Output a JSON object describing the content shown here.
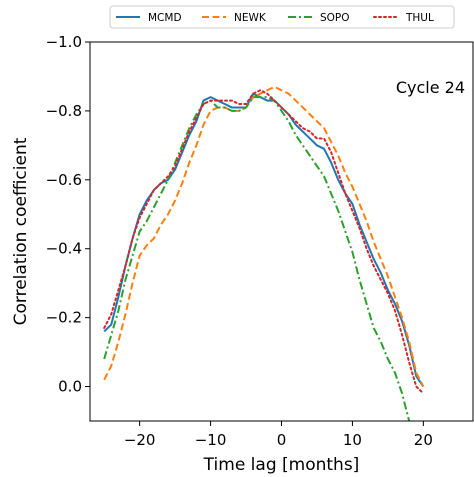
{
  "chart_data": {
    "type": "line",
    "title": "",
    "xlabel": "Time lag [months]",
    "ylabel": "Correlation coefficient",
    "annotation": "Cycle 24",
    "xlim": [
      -27,
      27
    ],
    "ylim": [
      0.1,
      -1.0
    ],
    "y_inverted": true,
    "x_ticks": [
      -20,
      -10,
      0,
      10,
      20
    ],
    "x_tick_labels": [
      "−20",
      "−10",
      "0",
      "10",
      "20"
    ],
    "y_ticks": [
      -1.0,
      -0.8,
      -0.6,
      -0.4,
      -0.2,
      0.0
    ],
    "y_tick_labels": [
      "−1.0",
      "−0.8",
      "−0.6",
      "−0.4",
      "−0.2",
      "0.0"
    ],
    "grid": false,
    "legend": {
      "placement": "top-center",
      "columns": 4
    },
    "series": [
      {
        "name": "MCMD",
        "color": "#1f77b4",
        "dash": "solid",
        "x": [
          -25,
          -24,
          -23,
          -22,
          -21,
          -20,
          -19,
          -18,
          -17,
          -16,
          -15,
          -14,
          -13,
          -12,
          -11,
          -10,
          -9,
          -8,
          -7,
          -6,
          -5,
          -4,
          -3,
          -2,
          -1,
          0,
          1,
          2,
          3,
          4,
          5,
          6,
          7,
          8,
          9,
          10,
          11,
          12,
          13,
          14,
          15,
          16,
          17,
          18,
          19,
          20
        ],
        "y": [
          -0.16,
          -0.18,
          -0.26,
          -0.35,
          -0.43,
          -0.5,
          -0.54,
          -0.57,
          -0.59,
          -0.6,
          -0.63,
          -0.68,
          -0.73,
          -0.77,
          -0.83,
          -0.84,
          -0.83,
          -0.82,
          -0.81,
          -0.81,
          -0.81,
          -0.85,
          -0.84,
          -0.83,
          -0.83,
          -0.81,
          -0.79,
          -0.76,
          -0.74,
          -0.72,
          -0.7,
          -0.69,
          -0.65,
          -0.6,
          -0.56,
          -0.53,
          -0.47,
          -0.42,
          -0.37,
          -0.33,
          -0.28,
          -0.24,
          -0.19,
          -0.12,
          -0.03,
          0.0
        ]
      },
      {
        "name": "NEWK",
        "color": "#ff7f0e",
        "dash": "dashed",
        "x": [
          -25,
          -24,
          -23,
          -22,
          -21,
          -20,
          -19,
          -18,
          -17,
          -16,
          -15,
          -14,
          -13,
          -12,
          -11,
          -10,
          -9,
          -8,
          -7,
          -6,
          -5,
          -4,
          -3,
          -2,
          -1,
          0,
          1,
          2,
          3,
          4,
          5,
          6,
          7,
          8,
          9,
          10,
          11,
          12,
          13,
          14,
          15,
          16,
          17,
          18,
          19,
          20
        ],
        "y": [
          -0.02,
          -0.06,
          -0.13,
          -0.21,
          -0.3,
          -0.38,
          -0.41,
          -0.43,
          -0.47,
          -0.5,
          -0.54,
          -0.59,
          -0.65,
          -0.7,
          -0.76,
          -0.8,
          -0.81,
          -0.81,
          -0.8,
          -0.8,
          -0.81,
          -0.84,
          -0.85,
          -0.86,
          -0.87,
          -0.86,
          -0.85,
          -0.83,
          -0.81,
          -0.79,
          -0.77,
          -0.75,
          -0.71,
          -0.67,
          -0.62,
          -0.58,
          -0.53,
          -0.48,
          -0.42,
          -0.37,
          -0.32,
          -0.26,
          -0.2,
          -0.13,
          -0.04,
          0.0
        ]
      },
      {
        "name": "SOPO",
        "color": "#2ca02c",
        "dash": "dashdot",
        "x": [
          -25,
          -24,
          -23,
          -22,
          -21,
          -20,
          -19,
          -18,
          -17,
          -16,
          -15,
          -14,
          -13,
          -12,
          -11,
          -10,
          -9,
          -8,
          -7,
          -6,
          -5,
          -4,
          -3,
          -2,
          -1,
          0,
          1,
          2,
          3,
          4,
          5,
          6,
          7,
          8,
          9,
          10,
          11,
          12,
          13,
          14,
          15,
          16,
          17,
          18
        ],
        "y": [
          -0.08,
          -0.15,
          -0.22,
          -0.31,
          -0.38,
          -0.45,
          -0.48,
          -0.52,
          -0.56,
          -0.6,
          -0.65,
          -0.7,
          -0.75,
          -0.79,
          -0.82,
          -0.83,
          -0.81,
          -0.81,
          -0.8,
          -0.8,
          -0.81,
          -0.84,
          -0.84,
          -0.84,
          -0.83,
          -0.8,
          -0.77,
          -0.73,
          -0.7,
          -0.67,
          -0.64,
          -0.61,
          -0.56,
          -0.51,
          -0.45,
          -0.39,
          -0.31,
          -0.24,
          -0.17,
          -0.13,
          -0.08,
          -0.04,
          0.02,
          0.1
        ]
      },
      {
        "name": "THUL",
        "color": "#d62728",
        "dash": "dotted",
        "x": [
          -25,
          -24,
          -23,
          -22,
          -21,
          -20,
          -19,
          -18,
          -17,
          -16,
          -15,
          -14,
          -13,
          -12,
          -11,
          -10,
          -9,
          -8,
          -7,
          -6,
          -5,
          -4,
          -3,
          -2,
          -1,
          0,
          1,
          2,
          3,
          4,
          5,
          6,
          7,
          8,
          9,
          10,
          11,
          12,
          13,
          14,
          15,
          16,
          17,
          18,
          19,
          20
        ],
        "y": [
          -0.17,
          -0.21,
          -0.28,
          -0.35,
          -0.43,
          -0.49,
          -0.53,
          -0.57,
          -0.59,
          -0.61,
          -0.64,
          -0.69,
          -0.74,
          -0.78,
          -0.82,
          -0.83,
          -0.83,
          -0.83,
          -0.83,
          -0.82,
          -0.82,
          -0.85,
          -0.86,
          -0.85,
          -0.83,
          -0.81,
          -0.79,
          -0.77,
          -0.75,
          -0.74,
          -0.72,
          -0.72,
          -0.68,
          -0.62,
          -0.56,
          -0.51,
          -0.46,
          -0.4,
          -0.35,
          -0.31,
          -0.27,
          -0.22,
          -0.15,
          -0.07,
          0.0,
          0.02
        ]
      }
    ]
  }
}
